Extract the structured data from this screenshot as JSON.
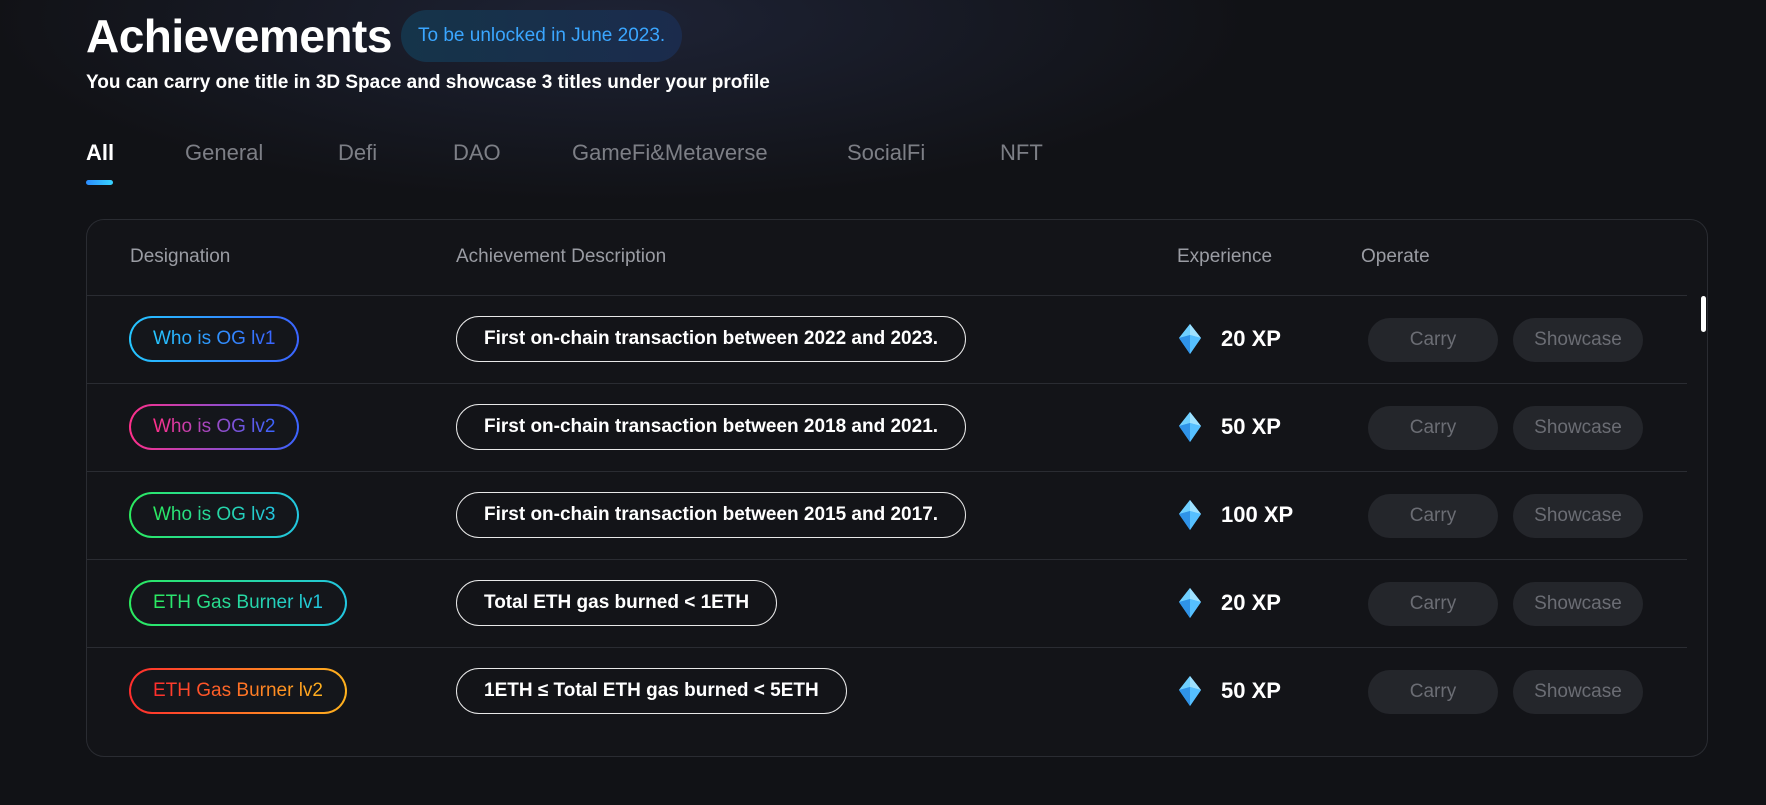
{
  "header": {
    "title": "Achievements",
    "unlock_badge": "To be unlocked in June 2023.",
    "subtitle": "You can carry one title in 3D Space and showcase 3 titles under your profile"
  },
  "tabs": [
    {
      "label": "All",
      "active": true
    },
    {
      "label": "General",
      "active": false
    },
    {
      "label": "Defi",
      "active": false
    },
    {
      "label": "DAO",
      "active": false
    },
    {
      "label": "GameFi&Metaverse",
      "active": false
    },
    {
      "label": "SocialFi",
      "active": false
    },
    {
      "label": "NFT",
      "active": false
    }
  ],
  "table": {
    "columns": {
      "designation": "Designation",
      "description": "Achievement Description",
      "experience": "Experience",
      "operate": "Operate"
    },
    "rows": [
      {
        "designation": "Who is OG lv1",
        "colors": [
          "#25c6ff",
          "#3a64ff"
        ],
        "description": "First on-chain transaction between 2022 and 2023.",
        "xp": "20 XP",
        "carry": "Carry",
        "showcase": "Showcase"
      },
      {
        "designation": "Who is OG lv2",
        "colors": [
          "#ff2f8a",
          "#3a64ff"
        ],
        "description": "First on-chain transaction between 2018 and 2021.",
        "xp": "50 XP",
        "carry": "Carry",
        "showcase": "Showcase"
      },
      {
        "designation": "Who is OG lv3",
        "colors": [
          "#2bea5f",
          "#22c6e0"
        ],
        "description": "First on-chain transaction between 2015 and 2017.",
        "xp": "100 XP",
        "carry": "Carry",
        "showcase": "Showcase"
      },
      {
        "designation": "ETH Gas Burner lv1",
        "colors": [
          "#2bea5f",
          "#22c6e0"
        ],
        "description": "Total ETH gas burned < 1ETH",
        "xp": "20 XP",
        "carry": "Carry",
        "showcase": "Showcase"
      },
      {
        "designation": "ETH Gas Burner lv2",
        "colors": [
          "#ff2d2d",
          "#ffb21e"
        ],
        "description": "1ETH ≤ Total ETH gas burned < 5ETH",
        "xp": "50 XP",
        "carry": "Carry",
        "showcase": "Showcase"
      }
    ]
  },
  "icons": {
    "experience": "diamond-gem-icon"
  }
}
